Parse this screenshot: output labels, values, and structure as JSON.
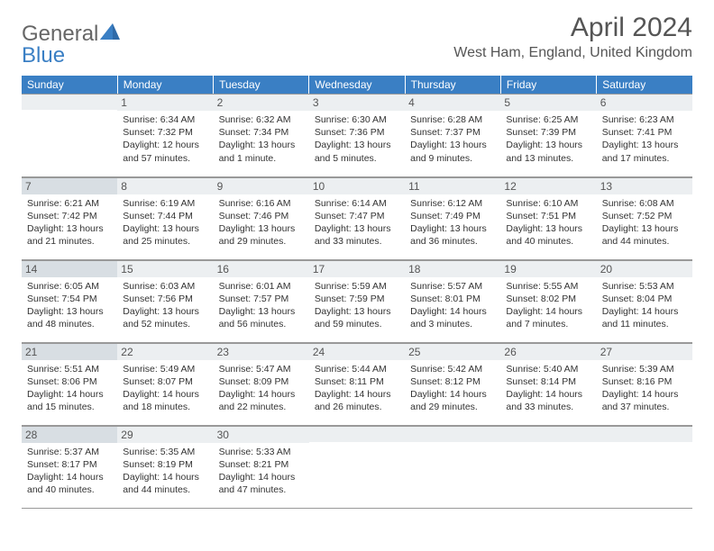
{
  "logo": {
    "part1": "General",
    "part2": "Blue"
  },
  "title": "April 2024",
  "location": "West Ham, England, United Kingdom",
  "colors": {
    "header_bg": "#3a7fc4",
    "header_text": "#ffffff",
    "daynum_bg": "#eceff1",
    "daynum_shaded_bg": "#d8dee3",
    "border": "#999999",
    "body_text": "#333333"
  },
  "days": [
    "Sunday",
    "Monday",
    "Tuesday",
    "Wednesday",
    "Thursday",
    "Friday",
    "Saturday"
  ],
  "weeks": [
    [
      {
        "num": "",
        "lines": []
      },
      {
        "num": "1",
        "lines": [
          "Sunrise: 6:34 AM",
          "Sunset: 7:32 PM",
          "Daylight: 12 hours",
          "and 57 minutes."
        ]
      },
      {
        "num": "2",
        "lines": [
          "Sunrise: 6:32 AM",
          "Sunset: 7:34 PM",
          "Daylight: 13 hours",
          "and 1 minute."
        ]
      },
      {
        "num": "3",
        "lines": [
          "Sunrise: 6:30 AM",
          "Sunset: 7:36 PM",
          "Daylight: 13 hours",
          "and 5 minutes."
        ]
      },
      {
        "num": "4",
        "lines": [
          "Sunrise: 6:28 AM",
          "Sunset: 7:37 PM",
          "Daylight: 13 hours",
          "and 9 minutes."
        ]
      },
      {
        "num": "5",
        "lines": [
          "Sunrise: 6:25 AM",
          "Sunset: 7:39 PM",
          "Daylight: 13 hours",
          "and 13 minutes."
        ]
      },
      {
        "num": "6",
        "lines": [
          "Sunrise: 6:23 AM",
          "Sunset: 7:41 PM",
          "Daylight: 13 hours",
          "and 17 minutes."
        ]
      }
    ],
    [
      {
        "num": "7",
        "shaded": true,
        "lines": [
          "Sunrise: 6:21 AM",
          "Sunset: 7:42 PM",
          "Daylight: 13 hours",
          "and 21 minutes."
        ]
      },
      {
        "num": "8",
        "lines": [
          "Sunrise: 6:19 AM",
          "Sunset: 7:44 PM",
          "Daylight: 13 hours",
          "and 25 minutes."
        ]
      },
      {
        "num": "9",
        "lines": [
          "Sunrise: 6:16 AM",
          "Sunset: 7:46 PM",
          "Daylight: 13 hours",
          "and 29 minutes."
        ]
      },
      {
        "num": "10",
        "lines": [
          "Sunrise: 6:14 AM",
          "Sunset: 7:47 PM",
          "Daylight: 13 hours",
          "and 33 minutes."
        ]
      },
      {
        "num": "11",
        "lines": [
          "Sunrise: 6:12 AM",
          "Sunset: 7:49 PM",
          "Daylight: 13 hours",
          "and 36 minutes."
        ]
      },
      {
        "num": "12",
        "lines": [
          "Sunrise: 6:10 AM",
          "Sunset: 7:51 PM",
          "Daylight: 13 hours",
          "and 40 minutes."
        ]
      },
      {
        "num": "13",
        "lines": [
          "Sunrise: 6:08 AM",
          "Sunset: 7:52 PM",
          "Daylight: 13 hours",
          "and 44 minutes."
        ]
      }
    ],
    [
      {
        "num": "14",
        "shaded": true,
        "lines": [
          "Sunrise: 6:05 AM",
          "Sunset: 7:54 PM",
          "Daylight: 13 hours",
          "and 48 minutes."
        ]
      },
      {
        "num": "15",
        "lines": [
          "Sunrise: 6:03 AM",
          "Sunset: 7:56 PM",
          "Daylight: 13 hours",
          "and 52 minutes."
        ]
      },
      {
        "num": "16",
        "lines": [
          "Sunrise: 6:01 AM",
          "Sunset: 7:57 PM",
          "Daylight: 13 hours",
          "and 56 minutes."
        ]
      },
      {
        "num": "17",
        "lines": [
          "Sunrise: 5:59 AM",
          "Sunset: 7:59 PM",
          "Daylight: 13 hours",
          "and 59 minutes."
        ]
      },
      {
        "num": "18",
        "lines": [
          "Sunrise: 5:57 AM",
          "Sunset: 8:01 PM",
          "Daylight: 14 hours",
          "and 3 minutes."
        ]
      },
      {
        "num": "19",
        "lines": [
          "Sunrise: 5:55 AM",
          "Sunset: 8:02 PM",
          "Daylight: 14 hours",
          "and 7 minutes."
        ]
      },
      {
        "num": "20",
        "lines": [
          "Sunrise: 5:53 AM",
          "Sunset: 8:04 PM",
          "Daylight: 14 hours",
          "and 11 minutes."
        ]
      }
    ],
    [
      {
        "num": "21",
        "shaded": true,
        "lines": [
          "Sunrise: 5:51 AM",
          "Sunset: 8:06 PM",
          "Daylight: 14 hours",
          "and 15 minutes."
        ]
      },
      {
        "num": "22",
        "lines": [
          "Sunrise: 5:49 AM",
          "Sunset: 8:07 PM",
          "Daylight: 14 hours",
          "and 18 minutes."
        ]
      },
      {
        "num": "23",
        "lines": [
          "Sunrise: 5:47 AM",
          "Sunset: 8:09 PM",
          "Daylight: 14 hours",
          "and 22 minutes."
        ]
      },
      {
        "num": "24",
        "lines": [
          "Sunrise: 5:44 AM",
          "Sunset: 8:11 PM",
          "Daylight: 14 hours",
          "and 26 minutes."
        ]
      },
      {
        "num": "25",
        "lines": [
          "Sunrise: 5:42 AM",
          "Sunset: 8:12 PM",
          "Daylight: 14 hours",
          "and 29 minutes."
        ]
      },
      {
        "num": "26",
        "lines": [
          "Sunrise: 5:40 AM",
          "Sunset: 8:14 PM",
          "Daylight: 14 hours",
          "and 33 minutes."
        ]
      },
      {
        "num": "27",
        "lines": [
          "Sunrise: 5:39 AM",
          "Sunset: 8:16 PM",
          "Daylight: 14 hours",
          "and 37 minutes."
        ]
      }
    ],
    [
      {
        "num": "28",
        "shaded": true,
        "lines": [
          "Sunrise: 5:37 AM",
          "Sunset: 8:17 PM",
          "Daylight: 14 hours",
          "and 40 minutes."
        ]
      },
      {
        "num": "29",
        "lines": [
          "Sunrise: 5:35 AM",
          "Sunset: 8:19 PM",
          "Daylight: 14 hours",
          "and 44 minutes."
        ]
      },
      {
        "num": "30",
        "lines": [
          "Sunrise: 5:33 AM",
          "Sunset: 8:21 PM",
          "Daylight: 14 hours",
          "and 47 minutes."
        ]
      },
      {
        "num": "",
        "lines": []
      },
      {
        "num": "",
        "lines": []
      },
      {
        "num": "",
        "lines": []
      },
      {
        "num": "",
        "lines": []
      }
    ]
  ]
}
